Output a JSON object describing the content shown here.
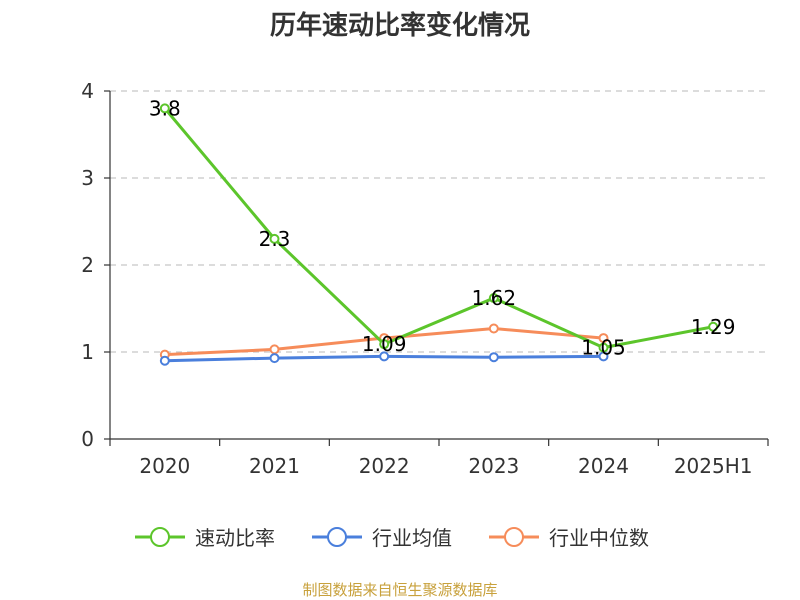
{
  "chart_data": {
    "type": "line",
    "title": "历年速动比率变化情况",
    "categories": [
      "2020",
      "2021",
      "2022",
      "2023",
      "2024",
      "2025H1"
    ],
    "y_ticks": [
      "0",
      "1",
      "2",
      "3",
      "4"
    ],
    "ylim": [
      0,
      4
    ],
    "grid": "horizontal dashed",
    "legend_placement": "bottom",
    "series": [
      {
        "name": "速动比率",
        "color": "#5cc52b",
        "values": [
          3.8,
          2.3,
          1.09,
          1.62,
          1.05,
          1.29
        ],
        "labels": [
          "3.8",
          "2.3",
          "1.09",
          "1.62",
          "1.05",
          "1.29"
        ]
      },
      {
        "name": "行业均值",
        "color": "#4a7fdc",
        "values": [
          0.9,
          0.93,
          0.95,
          0.94,
          0.95,
          null
        ],
        "labels": []
      },
      {
        "name": "行业中位数",
        "color": "#f68c5a",
        "values": [
          0.97,
          1.03,
          1.16,
          1.27,
          1.16,
          null
        ],
        "labels": []
      }
    ]
  },
  "footer": {
    "source": "制图数据来自恒生聚源数据库"
  }
}
